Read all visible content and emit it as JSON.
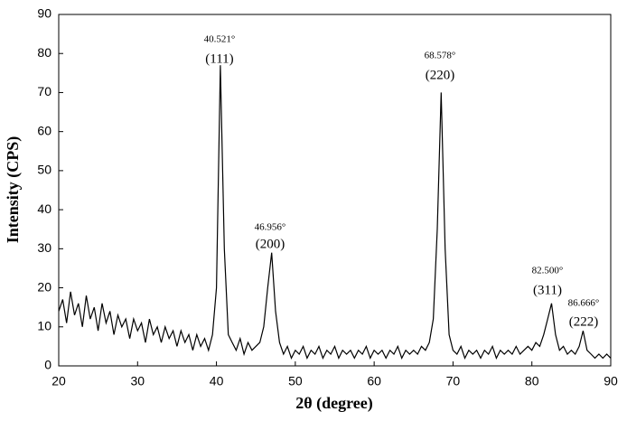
{
  "chart_data": {
    "type": "line",
    "x_label": "2θ (degree)",
    "y_label": "Intensity (CPS)",
    "xlim": [
      20,
      90
    ],
    "xticks": [
      20,
      30,
      40,
      50,
      60,
      70,
      80,
      90
    ],
    "ylim": [
      0,
      90
    ],
    "yticks": [
      0,
      10,
      20,
      30,
      40,
      50,
      60,
      70,
      80,
      90
    ],
    "x": [
      20,
      20.5,
      21,
      21.5,
      22,
      22.5,
      23,
      23.5,
      24,
      24.5,
      25,
      25.5,
      26,
      26.5,
      27,
      27.5,
      28,
      28.5,
      29,
      29.5,
      30,
      30.5,
      31,
      31.5,
      32,
      32.5,
      33,
      33.5,
      34,
      34.5,
      35,
      35.5,
      36,
      36.5,
      37,
      37.5,
      38,
      38.5,
      39,
      39.5,
      40,
      40.5,
      41,
      41.5,
      42,
      42.5,
      43,
      43.5,
      44,
      44.5,
      45,
      45.5,
      46,
      46.5,
      47,
      47.5,
      48,
      48.5,
      49,
      49.5,
      50,
      50.5,
      51,
      51.5,
      52,
      52.5,
      53,
      53.5,
      54,
      54.5,
      55,
      55.5,
      56,
      56.5,
      57,
      57.5,
      58,
      58.5,
      59,
      59.5,
      60,
      60.5,
      61,
      61.5,
      62,
      62.5,
      63,
      63.5,
      64,
      64.5,
      65,
      65.5,
      66,
      66.5,
      67,
      67.5,
      68,
      68.5,
      69,
      69.5,
      70,
      70.5,
      71,
      71.5,
      72,
      72.5,
      73,
      73.5,
      74,
      74.5,
      75,
      75.5,
      76,
      76.5,
      77,
      77.5,
      78,
      78.5,
      79,
      79.5,
      80,
      80.5,
      81,
      81.5,
      82,
      82.5,
      83,
      83.5,
      84,
      84.5,
      85,
      85.5,
      86,
      86.5,
      87,
      87.5,
      88,
      88.5,
      89,
      89.5,
      90
    ],
    "series": [
      {
        "color": "#000000",
        "values": [
          14,
          17,
          11,
          19,
          13,
          16,
          10,
          18,
          12,
          15,
          9,
          16,
          11,
          14,
          8,
          13,
          10,
          12,
          7,
          12,
          9,
          11,
          6,
          12,
          8,
          10,
          6,
          10,
          7,
          9,
          5,
          9,
          6,
          8,
          4,
          8,
          5,
          7,
          4,
          8,
          20,
          77,
          30,
          8,
          6,
          4,
          7,
          3,
          6,
          4,
          5,
          6,
          10,
          20,
          29,
          14,
          6,
          3,
          5,
          2,
          4,
          3,
          5,
          2,
          4,
          3,
          5,
          2,
          4,
          3,
          5,
          2,
          4,
          3,
          4,
          2,
          4,
          3,
          5,
          2,
          4,
          3,
          4,
          2,
          4,
          3,
          5,
          2,
          4,
          3,
          4,
          3,
          5,
          4,
          6,
          12,
          35,
          70,
          30,
          8,
          4,
          3,
          5,
          2,
          4,
          3,
          4,
          2,
          4,
          3,
          5,
          2,
          4,
          3,
          4,
          3,
          5,
          3,
          4,
          5,
          4,
          6,
          5,
          8,
          12,
          16,
          8,
          4,
          5,
          3,
          4,
          3,
          5,
          9,
          4,
          3,
          2,
          3,
          2,
          3,
          2
        ]
      }
    ],
    "annotations": [
      {
        "text": "40.521°",
        "label": "(111)"
      },
      {
        "text": "46.956°",
        "label": "(200)"
      },
      {
        "text": "68.578°",
        "label": "(220)"
      },
      {
        "text": "82.500°",
        "label": "(311)"
      },
      {
        "text": "86.666°",
        "label": "(222)"
      }
    ]
  }
}
